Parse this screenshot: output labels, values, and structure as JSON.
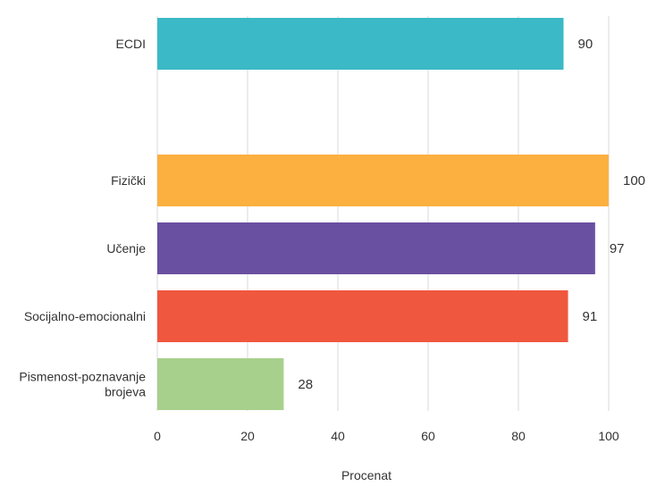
{
  "chart_data": {
    "type": "bar",
    "orientation": "horizontal",
    "categories": [
      [
        "ECDI"
      ],
      [
        "Fizički"
      ],
      [
        "Učenje"
      ],
      [
        "Socijalno-emocionalni"
      ],
      [
        "Pismenost-poznavanje",
        "brojeva"
      ]
    ],
    "values": [
      90,
      100,
      97,
      91,
      28
    ],
    "value_labels": [
      "90",
      "100",
      "97",
      "91",
      "28"
    ],
    "colors": [
      "#3BB9C6",
      "#FBB040",
      "#6A50A1",
      "#F0573F",
      "#A8D08D"
    ],
    "xlabel": "Procenat",
    "xlim": [
      0,
      100
    ],
    "xticks": [
      "0",
      "20",
      "40",
      "60",
      "80",
      "100"
    ],
    "grid": true
  }
}
